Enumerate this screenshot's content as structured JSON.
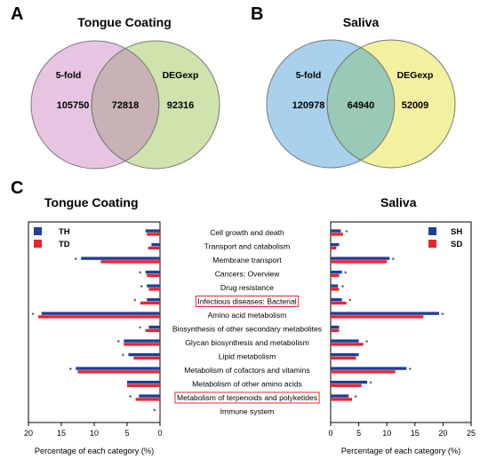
{
  "panels": {
    "A": {
      "letter": "A",
      "title": "Tongue Coating",
      "left_set": "5-fold",
      "right_set": "DEGexp",
      "left_only": "105750",
      "overlap": "72818",
      "right_only": "92316",
      "left_color": "#e7c5e2",
      "right_color": "#cfe3ac",
      "overlap_color": "#c9b2b6"
    },
    "B": {
      "letter": "B",
      "title": "Saliva",
      "left_set": "5-fold",
      "right_set": "DEGexp",
      "left_only": "120978",
      "overlap": "64940",
      "right_only": "52009",
      "left_color": "#a9d1ec",
      "right_color": "#f3f09f",
      "overlap_color": "#9ac9b5"
    },
    "C": {
      "letter": "C",
      "left_title": "Tongue Coating",
      "right_title": "Saliva"
    }
  },
  "chart_data": [
    {
      "type": "bar",
      "orientation": "horizontal-mirrored",
      "title": "Tongue Coating",
      "xlabel": "Percentage of each category (%)",
      "xlim": [
        20,
        0
      ],
      "xticks": [
        20,
        15,
        10,
        5,
        0
      ],
      "categories": [
        "Cell growth and death",
        "Transport and catabolism",
        "Membrane transport",
        "Cancers: Overview",
        "Drug resistance",
        "Infectious diseases: Bacterial",
        "Amino acid metabolism",
        "Biosynthesis of other secondary metabolites",
        "Glycan biosynthesis and metabolism",
        "Lipid metabolism",
        "Metabolism of cofactors and vitamins",
        "Metabolism of other amino acids",
        "Metabolism of terpenoids and polyketides",
        "Immune system"
      ],
      "highlighted": [
        "Infectious diseases: Bacterial",
        "Metabolism of terpenoids and polyketides"
      ],
      "significance_marker": "*",
      "legend_position": "top-left",
      "series": [
        {
          "name": "TH",
          "color": "#1f3f9a",
          "values": [
            2.2,
            1.3,
            12.0,
            2.2,
            2.0,
            2.0,
            18.0,
            1.7,
            5.5,
            4.8,
            12.8,
            5.0,
            3.2,
            0.05
          ]
        },
        {
          "name": "TD",
          "color": "#e8262d",
          "values": [
            2.0,
            1.8,
            9.0,
            2.0,
            1.7,
            3.0,
            18.5,
            2.2,
            5.5,
            4.0,
            12.5,
            5.0,
            3.7,
            0.05
          ]
        }
      ],
      "significant": [
        false,
        false,
        true,
        true,
        true,
        true,
        true,
        true,
        true,
        true,
        true,
        false,
        true,
        true
      ]
    },
    {
      "type": "bar",
      "orientation": "horizontal",
      "title": "Saliva",
      "xlabel": "Percentage of each category (%)",
      "xlim": [
        0,
        25
      ],
      "xticks": [
        0,
        5,
        10,
        15,
        20,
        25
      ],
      "categories": [
        "Cell growth and death",
        "Transport and catabolism",
        "Membrane transport",
        "Cancers: Overview",
        "Drug resistance",
        "Infectious diseases: Bacterial",
        "Amino acid metabolism",
        "Biosynthesis of other secondary metabolites",
        "Glycan biosynthesis and metabolism",
        "Lipid metabolism",
        "Metabolism of cofactors and vitamins",
        "Metabolism of other amino acids",
        "Metabolism of terpenoids and polyketides",
        "Immune system"
      ],
      "significance_marker": "*",
      "legend_position": "top-right",
      "series": [
        {
          "name": "SH",
          "color": "#1f3f9a",
          "values": [
            1.8,
            1.5,
            10.5,
            2.0,
            1.3,
            2.0,
            19.3,
            1.5,
            5.0,
            5.0,
            13.5,
            6.5,
            3.2,
            0.05
          ]
        },
        {
          "name": "SD",
          "color": "#e8262d",
          "values": [
            2.2,
            1.0,
            10.0,
            1.5,
            1.5,
            2.8,
            16.5,
            1.5,
            5.8,
            4.5,
            11.5,
            5.5,
            3.8,
            0.05
          ]
        }
      ],
      "significant": [
        true,
        false,
        true,
        true,
        true,
        true,
        true,
        false,
        true,
        false,
        true,
        true,
        true,
        false
      ]
    }
  ]
}
